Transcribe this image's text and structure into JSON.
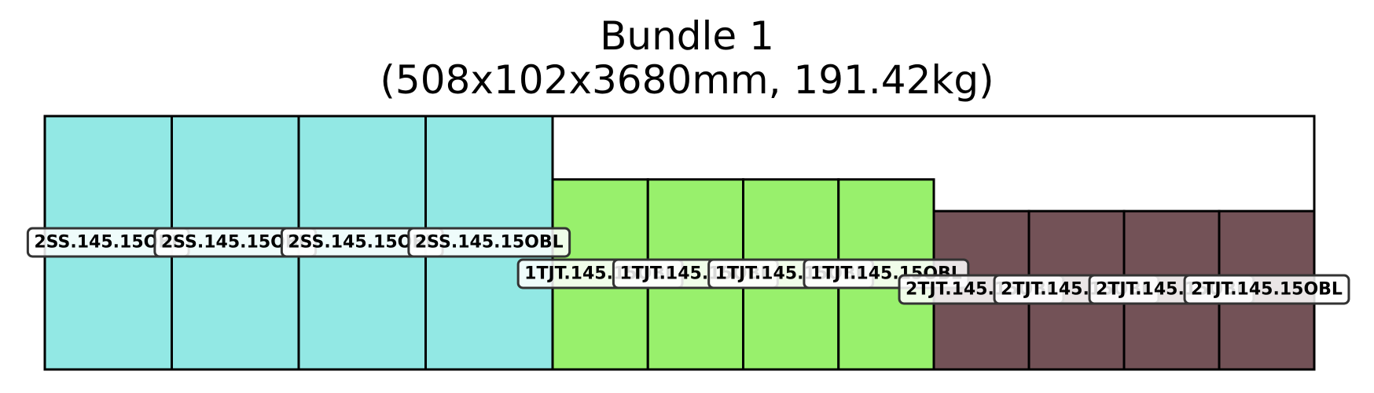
{
  "title": "Bundle 1",
  "subtitle": "(508x102x3680mm, 191.42kg)",
  "bundle": {
    "outline_color": "#000000",
    "label_box_fill": "#ffffff",
    "label_box_border": "#333333",
    "groups": [
      {
        "name": "2SS",
        "color": "#92e8e4",
        "height_fraction": 1.0,
        "pieces": [
          {
            "label": "2SS.145.15OBL"
          },
          {
            "label": "2SS.145.15OBL"
          },
          {
            "label": "2SS.145.15OBL"
          },
          {
            "label": "2SS.145.15OBL"
          }
        ]
      },
      {
        "name": "1TJT",
        "color": "#98f06c",
        "height_fraction": 0.75,
        "pieces": [
          {
            "label": "1TJT.145.15OBL"
          },
          {
            "label": "1TJT.145.15OBL"
          },
          {
            "label": "1TJT.145.15OBL"
          },
          {
            "label": "1TJT.145.15OBL"
          }
        ]
      },
      {
        "name": "2TJT",
        "color": "#735257",
        "height_fraction": 0.625,
        "pieces": [
          {
            "label": "2TJT.145.15OBL"
          },
          {
            "label": "2TJT.145.15OBL"
          },
          {
            "label": "2TJT.145.15OBL"
          },
          {
            "label": "2TJT.145.15OBL"
          }
        ]
      }
    ]
  }
}
